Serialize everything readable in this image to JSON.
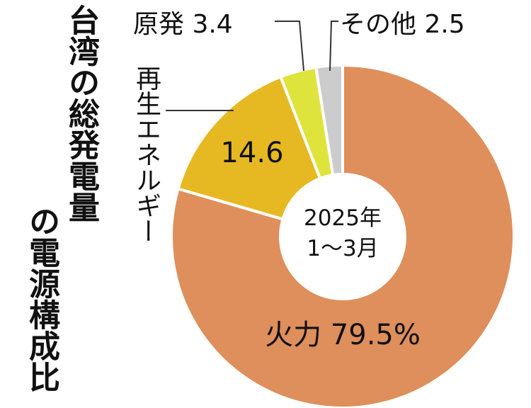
{
  "chart_data": {
    "type": "pie",
    "style": "donut",
    "title_lines": [
      "台湾の総発電量",
      "の電源構成比"
    ],
    "center_label": [
      "2025年",
      "1〜3月"
    ],
    "slices": [
      {
        "name": "火力",
        "value": 79.5,
        "label": "火力 79.5%",
        "color": "#de8f5b"
      },
      {
        "name": "再生エネルギー",
        "value": 14.6,
        "label": "14.6",
        "color": "#e6b923"
      },
      {
        "name": "原発",
        "value": 3.4,
        "label": "原発 3.4",
        "color": "#dfe43c"
      },
      {
        "name": "その他",
        "value": 2.5,
        "label": "その他 2.5",
        "color": "#cccccc"
      }
    ],
    "external_labels": {
      "renewable_name": "再生エネルギー"
    }
  }
}
